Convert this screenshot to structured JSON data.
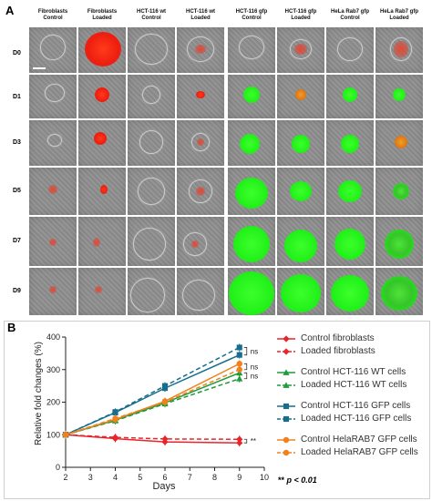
{
  "panel_a": {
    "letter": "A",
    "columns": [
      {
        "line1": "Fibroblasts",
        "line2": "Control"
      },
      {
        "line1": "Fibroblasts",
        "line2": "Loaded"
      },
      {
        "line1": "HCT-116 wt",
        "line2": "Control"
      },
      {
        "line1": "HCT-116 wt",
        "line2": "Loaded"
      },
      {
        "line1": "HCT-116 gfp",
        "line2": "Control"
      },
      {
        "line1": "HCT-116 gfp",
        "line2": "Loaded"
      },
      {
        "line1": "HeLa Rab7 gfp",
        "line2": "Control"
      },
      {
        "line1": "HeLa Rab7 gfp",
        "line2": "Loaded"
      }
    ],
    "rows": [
      "D0",
      "D1",
      "D3",
      "D5",
      "D7",
      "D9"
    ]
  },
  "panel_b": {
    "letter": "B",
    "legend": [
      {
        "label": "Control fibroblasts",
        "color": "#e8252b"
      },
      {
        "label": "Loaded fibroblasts",
        "color": "#e8252b"
      },
      {
        "label": "Control HCT-116 WT cells",
        "color": "#1e9b3a"
      },
      {
        "label": "Loaded HCT-116 WT cells",
        "color": "#1e9b3a"
      },
      {
        "label": "Control HCT-116 GFP cells",
        "color": "#166e8c"
      },
      {
        "label": "Loaded HCT-116 GFP cells",
        "color": "#166e8c"
      },
      {
        "label": "Control HelaRAB7 GFP cells",
        "color": "#f0821e"
      },
      {
        "label": "Loaded HelaRAB7 GFP cells",
        "color": "#f0821e"
      }
    ],
    "significance_note_stars": "** ",
    "significance_note_text": "p < 0.01",
    "annotations": [
      "ns",
      "ns",
      "ns",
      "**"
    ]
  },
  "chart_data": {
    "type": "line",
    "xlabel": "Days",
    "ylabel": "Relative fold changes (%)",
    "xlim": [
      2,
      10
    ],
    "ylim": [
      0,
      400
    ],
    "xticks": [
      2,
      3,
      4,
      5,
      6,
      7,
      8,
      9,
      10
    ],
    "yticks": [
      0,
      100,
      200,
      300,
      400
    ],
    "x": [
      2,
      4,
      6,
      9
    ],
    "series": [
      {
        "name": "Control fibroblasts",
        "color": "#e8252b",
        "dashed": false,
        "marker": "diamond",
        "values": [
          100,
          88,
          78,
          75
        ]
      },
      {
        "name": "Loaded fibroblasts",
        "color": "#e8252b",
        "dashed": true,
        "marker": "diamond",
        "values": [
          100,
          92,
          87,
          86
        ]
      },
      {
        "name": "Control HCT-116 WT cells",
        "color": "#1e9b3a",
        "dashed": false,
        "marker": "triangle",
        "values": [
          100,
          145,
          198,
          290
        ]
      },
      {
        "name": "Loaded HCT-116 WT cells",
        "color": "#1e9b3a",
        "dashed": true,
        "marker": "triangle",
        "values": [
          100,
          143,
          195,
          272
        ]
      },
      {
        "name": "Control HCT-116 GFP cells",
        "color": "#166e8c",
        "dashed": false,
        "marker": "square",
        "values": [
          100,
          168,
          243,
          345
        ]
      },
      {
        "name": "Loaded HCT-116 GFP cells",
        "color": "#166e8c",
        "dashed": true,
        "marker": "square",
        "values": [
          100,
          170,
          250,
          368
        ]
      },
      {
        "name": "Control HelaRAB7 GFP cells",
        "color": "#f0821e",
        "dashed": false,
        "marker": "circle",
        "values": [
          100,
          147,
          203,
          318
        ]
      },
      {
        "name": "Loaded HelaRAB7 GFP cells",
        "color": "#f0821e",
        "dashed": true,
        "marker": "circle",
        "values": [
          100,
          150,
          200,
          300
        ]
      }
    ]
  }
}
